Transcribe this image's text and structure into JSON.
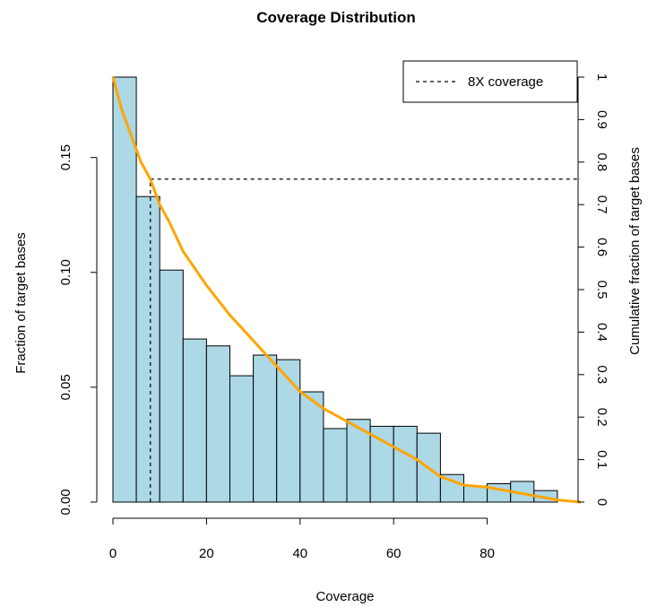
{
  "chart_data": {
    "type": "bar",
    "title": "Coverage Distribution",
    "xlabel": "Coverage",
    "ylabel": "Fraction of target bases",
    "y2label": "Cumulative fraction of target bases",
    "xlim": [
      0,
      100
    ],
    "ylim": [
      0,
      0.185
    ],
    "y2lim": [
      0,
      1.0
    ],
    "x_ticks": [
      "0",
      "20",
      "40",
      "60",
      "80"
    ],
    "x_tick_values": [
      0,
      20,
      40,
      60,
      80
    ],
    "y_ticks": [
      "0.00",
      "0.05",
      "0.10",
      "0.15"
    ],
    "y_tick_values": [
      0,
      0.05,
      0.1,
      0.15
    ],
    "y2_ticks": [
      "0",
      "0.1",
      "0.2",
      "0.3",
      "0.4",
      "0.5",
      "0.6",
      "0.7",
      "0.8",
      "0.9",
      "1"
    ],
    "y2_tick_values": [
      0,
      0.1,
      0.2,
      0.3,
      0.4,
      0.5,
      0.6,
      0.7,
      0.8,
      0.9,
      1.0
    ],
    "bin_width": 5,
    "bins": [
      {
        "x0": 0,
        "value": 0.185
      },
      {
        "x0": 5,
        "value": 0.133
      },
      {
        "x0": 10,
        "value": 0.101
      },
      {
        "x0": 15,
        "value": 0.071
      },
      {
        "x0": 20,
        "value": 0.068
      },
      {
        "x0": 25,
        "value": 0.055
      },
      {
        "x0": 30,
        "value": 0.064
      },
      {
        "x0": 35,
        "value": 0.062
      },
      {
        "x0": 40,
        "value": 0.048
      },
      {
        "x0": 45,
        "value": 0.032
      },
      {
        "x0": 50,
        "value": 0.036
      },
      {
        "x0": 55,
        "value": 0.033
      },
      {
        "x0": 60,
        "value": 0.033
      },
      {
        "x0": 65,
        "value": 0.03
      },
      {
        "x0": 70,
        "value": 0.012
      },
      {
        "x0": 75,
        "value": 0.007
      },
      {
        "x0": 80,
        "value": 0.008
      },
      {
        "x0": 85,
        "value": 0.009
      },
      {
        "x0": 90,
        "value": 0.005
      }
    ],
    "cumulative": {
      "x": [
        0,
        2,
        4,
        6,
        8,
        10,
        12,
        15,
        20,
        25,
        30,
        35,
        40,
        45,
        50,
        55,
        60,
        65,
        70,
        75,
        80,
        85,
        90,
        95,
        100
      ],
      "y": [
        1.0,
        0.92,
        0.86,
        0.8,
        0.76,
        0.7,
        0.66,
        0.59,
        0.51,
        0.44,
        0.38,
        0.32,
        0.26,
        0.22,
        0.19,
        0.16,
        0.13,
        0.1,
        0.06,
        0.04,
        0.035,
        0.025,
        0.015,
        0.005,
        0.0
      ]
    },
    "threshold": {
      "x": 8,
      "cumulative": 0.76
    },
    "legend": {
      "position": "top-right",
      "entries": [
        {
          "label": "8X coverage",
          "style": "dashed"
        }
      ]
    },
    "colors": {
      "bar_fill": "#add8e6",
      "bar_stroke": "#000000",
      "cumulative_line": "#ffa500",
      "threshold_line": "#000000"
    },
    "grid": false
  }
}
